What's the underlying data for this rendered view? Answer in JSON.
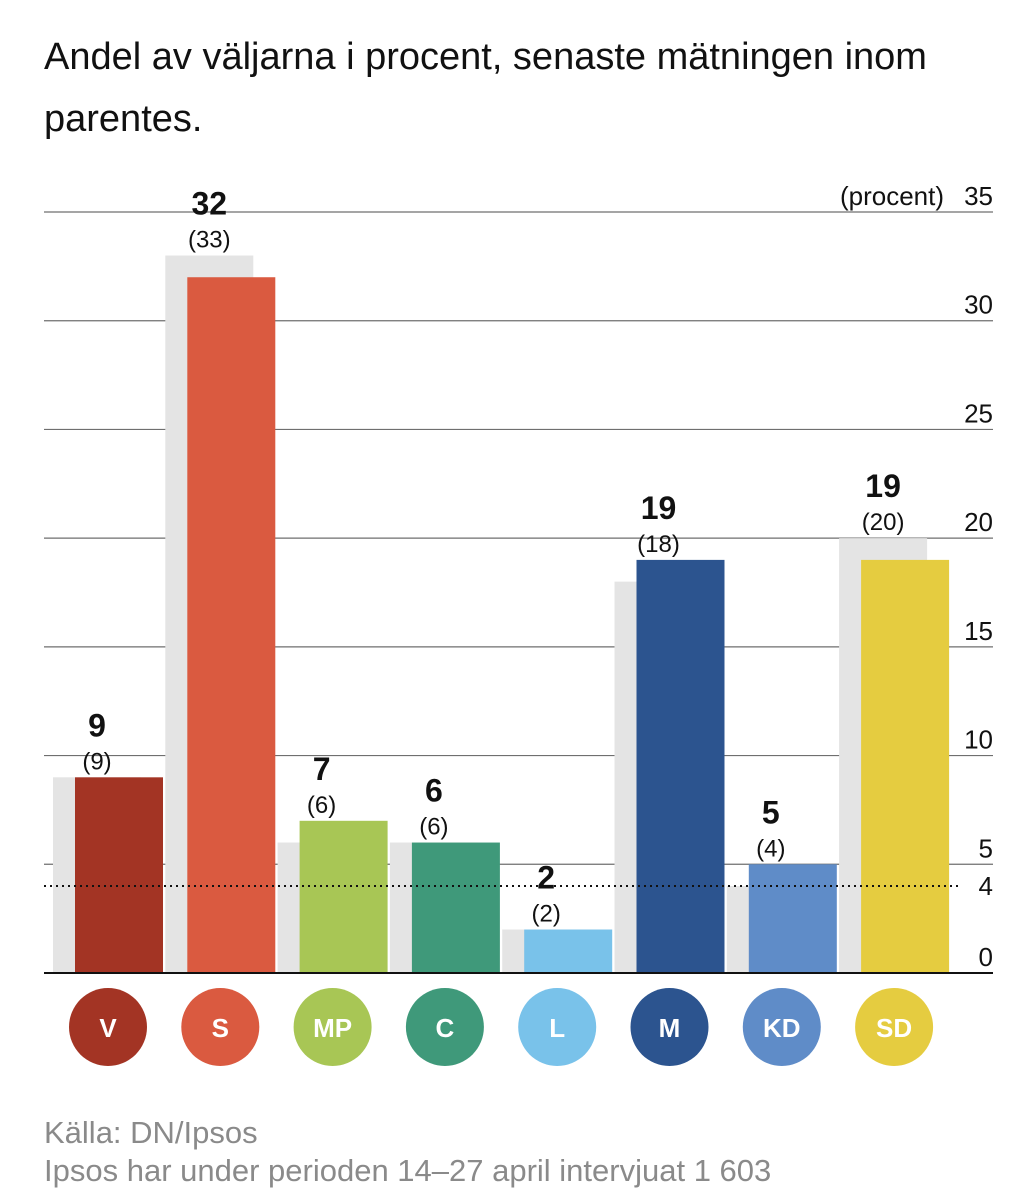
{
  "title": "Andel av väljarna i procent, senaste mätningen inom parentes.",
  "unit_label": "(procent)",
  "footer": {
    "source": "Källa: DN/Ipsos",
    "note": "Ipsos har under perioden 14–27 april intervjuat 1 603"
  },
  "threshold": {
    "value": 4,
    "label": "4",
    "style": "dotted"
  },
  "chart_data": {
    "type": "bar",
    "categories": [
      "V",
      "S",
      "MP",
      "C",
      "L",
      "M",
      "KD",
      "SD"
    ],
    "series": [
      {
        "values": [
          9,
          32,
          7,
          6,
          2,
          19,
          5,
          19
        ]
      },
      {
        "values": [
          9,
          33,
          6,
          6,
          2,
          18,
          4,
          20
        ]
      }
    ],
    "value_labels": [
      "9",
      "32",
      "7",
      "6",
      "2",
      "19",
      "5",
      "19"
    ],
    "previous_labels": [
      "(9)",
      "(33)",
      "(6)",
      "(6)",
      "(2)",
      "(18)",
      "(4)",
      "(20)"
    ],
    "colors": [
      "#a33424",
      "#da5a40",
      "#a8c655",
      "#3f997a",
      "#79c2ea",
      "#2c548f",
      "#5f8cc8",
      "#e5cc40"
    ],
    "previous_color": "#e4e4e4",
    "yticks": [
      0,
      5,
      10,
      15,
      20,
      25,
      30,
      35
    ],
    "ylim": [
      0,
      35
    ],
    "grid": true,
    "xlabel": "",
    "ylabel": "(procent)"
  }
}
